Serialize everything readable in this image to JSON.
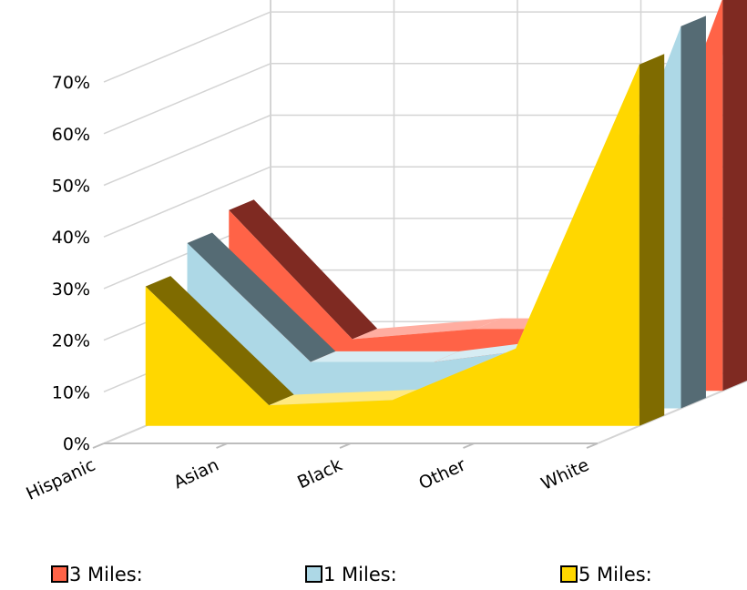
{
  "chart_data": {
    "type": "area",
    "three_d": true,
    "title": "",
    "xlabel": "",
    "ylabel": "",
    "categories": [
      "Hispanic",
      "Asian",
      "Black",
      "Other",
      "White"
    ],
    "ylim": [
      0,
      0.7
    ],
    "y_ticks": [
      "0%",
      "10%",
      "20%",
      "30%",
      "40%",
      "50%",
      "60%",
      "70%"
    ],
    "grid": true,
    "legend_position": "bottom",
    "series": [
      {
        "name": "3 Miles:",
        "values": [
          0.35,
          0.1,
          0.12,
          0.12,
          0.76
        ],
        "color": "#ff6347",
        "dark": "#7f2a22",
        "light": "#ffada0"
      },
      {
        "name": "1 Miles:",
        "values": [
          0.32,
          0.09,
          0.09,
          0.12,
          0.74
        ],
        "color": "#add8e6",
        "dark": "#556b74",
        "light": "#d6ecf3"
      },
      {
        "name": "5 Miles:",
        "values": [
          0.27,
          0.04,
          0.05,
          0.15,
          0.7
        ],
        "color": "#ffd700",
        "dark": "#7f6b00",
        "light": "#ffe97f"
      }
    ],
    "legend": [
      "3 Miles:",
      "1 Miles:",
      "5 Miles:"
    ]
  }
}
